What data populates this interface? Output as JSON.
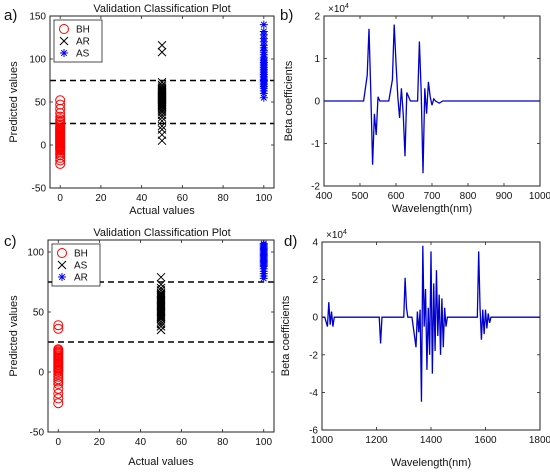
{
  "chart_data": [
    {
      "panel_label": "a)",
      "type": "scatter",
      "title": "Validation Classification Plot",
      "xlabel": "Actual values",
      "ylabel": "Predicted values",
      "xlim": [
        -5,
        105
      ],
      "ylim": [
        -50,
        150
      ],
      "xticks": [
        0,
        20,
        40,
        60,
        80,
        100
      ],
      "xtick_labels": [
        "0",
        "20",
        "40",
        "60",
        "80",
        "100"
      ],
      "yticks": [
        -50,
        0,
        50,
        100,
        150
      ],
      "ytick_labels": [
        "-50",
        "0",
        "50",
        "100",
        "150"
      ],
      "thresholds": [
        25,
        75
      ],
      "legend_position": "top-left",
      "legend": [
        {
          "label": "BH",
          "marker": "circle",
          "color": "#ff0000"
        },
        {
          "label": "AR",
          "marker": "x",
          "color": "#000000"
        },
        {
          "label": "AS",
          "marker": "asterisk",
          "color": "#0000ff"
        }
      ],
      "series": [
        {
          "name": "BH",
          "marker": "circle",
          "color": "#ff0000",
          "x": 0,
          "y": [
            -22,
            -18,
            -15,
            -12,
            -10,
            -8,
            -6,
            -5,
            -4,
            -3,
            -2,
            -1,
            0,
            1,
            2,
            3,
            4,
            5,
            6,
            7,
            8,
            9,
            10,
            11,
            12,
            13,
            14,
            15,
            16,
            17,
            18,
            19,
            20,
            22,
            24,
            26,
            28,
            30,
            33,
            37,
            42,
            47,
            52
          ]
        },
        {
          "name": "AR",
          "marker": "x",
          "color": "#000000",
          "x": 50,
          "y": [
            5,
            12,
            18,
            22,
            28,
            32,
            35,
            38,
            40,
            42,
            44,
            45,
            46,
            47,
            48,
            49,
            50,
            51,
            52,
            53,
            54,
            55,
            56,
            57,
            58,
            59,
            60,
            61,
            62,
            63,
            64,
            65,
            66,
            68,
            70,
            73,
            108,
            116
          ]
        },
        {
          "name": "AS",
          "marker": "asterisk",
          "color": "#0000ff",
          "x": 100,
          "y": [
            55,
            60,
            63,
            66,
            68,
            70,
            72,
            74,
            75,
            76,
            78,
            80,
            82,
            84,
            86,
            88,
            90,
            92,
            94,
            96,
            98,
            100,
            102,
            105,
            108,
            110,
            113,
            116,
            120,
            124,
            128,
            132,
            140
          ]
        }
      ]
    },
    {
      "panel_label": "b)",
      "type": "line",
      "title": "",
      "xlabel": "Wavelength(nm)",
      "ylabel": "Beta coefficients",
      "exponent_label": "×10^4",
      "xlim": [
        400,
        1000
      ],
      "ylim": [
        -2,
        2
      ],
      "xticks": [
        400,
        500,
        600,
        700,
        800,
        900,
        1000
      ],
      "xtick_labels": [
        "400",
        "500",
        "600",
        "700",
        "800",
        "900",
        "1000"
      ],
      "yticks": [
        -2,
        -1,
        0,
        1,
        2
      ],
      "ytick_labels": [
        "-2",
        "-1",
        "0",
        "1",
        "2"
      ],
      "series": [
        {
          "color": "#0000cc",
          "x": [
            400,
            510,
            520,
            525,
            530,
            535,
            540,
            545,
            550,
            555,
            560,
            580,
            590,
            595,
            600,
            605,
            610,
            615,
            620,
            625,
            630,
            640,
            650,
            660,
            665,
            670,
            675,
            680,
            685,
            690,
            695,
            700,
            705,
            710,
            720,
            730,
            1000
          ],
          "y": [
            0,
            0,
            0.6,
            1.7,
            0.2,
            -1.5,
            -0.3,
            -0.8,
            0.1,
            0,
            0,
            0,
            0.5,
            1.8,
            0.9,
            0.1,
            -0.4,
            0.3,
            -0.3,
            -1.3,
            0.2,
            0,
            0,
            0,
            1.4,
            0.2,
            -1.7,
            0.3,
            -0.3,
            0.45,
            0.1,
            -0.1,
            0.05,
            0,
            -0.05,
            0,
            0
          ]
        }
      ]
    },
    {
      "panel_label": "c)",
      "type": "scatter",
      "title": "Validation Classification Plot",
      "xlabel": "Actual values",
      "ylabel": "Predicted values",
      "xlim": [
        -5,
        105
      ],
      "ylim": [
        -50,
        110
      ],
      "xticks": [
        0,
        20,
        40,
        60,
        80,
        100
      ],
      "xtick_labels": [
        "0",
        "20",
        "40",
        "60",
        "80",
        "100"
      ],
      "yticks": [
        -50,
        0,
        50,
        100
      ],
      "ytick_labels": [
        "-50",
        "0",
        "50",
        "100"
      ],
      "thresholds": [
        25,
        75
      ],
      "legend_position": "top-left",
      "legend": [
        {
          "label": "BH",
          "marker": "circle",
          "color": "#ff0000"
        },
        {
          "label": "AS",
          "marker": "x",
          "color": "#000000"
        },
        {
          "label": "AR",
          "marker": "asterisk",
          "color": "#0000ff"
        }
      ],
      "series": [
        {
          "name": "BH",
          "marker": "circle",
          "color": "#ff0000",
          "x": 0,
          "y": [
            -26,
            -22,
            -18,
            -14,
            -10,
            -8,
            -6,
            -4,
            -2,
            0,
            1,
            2,
            3,
            4,
            5,
            6,
            7,
            8,
            9,
            10,
            11,
            12,
            13,
            14,
            15,
            16,
            17,
            18,
            19,
            36,
            39
          ]
        },
        {
          "name": "AS",
          "marker": "x",
          "color": "#000000",
          "x": 50,
          "y": [
            35,
            38,
            40,
            42,
            44,
            45,
            46,
            47,
            48,
            49,
            50,
            51,
            52,
            53,
            54,
            55,
            56,
            57,
            58,
            59,
            60,
            61,
            62,
            63,
            64,
            65,
            66,
            68,
            70,
            73,
            79
          ]
        },
        {
          "name": "AR",
          "marker": "asterisk",
          "color": "#0000ff",
          "x": 100,
          "y": [
            78,
            80,
            82,
            84,
            86,
            88,
            89,
            90,
            91,
            92,
            93,
            94,
            95,
            96,
            97,
            98,
            99,
            100,
            101,
            102,
            103,
            104,
            105,
            106,
            107
          ]
        }
      ]
    },
    {
      "panel_label": "d)",
      "type": "line",
      "title": "",
      "xlabel": "Wavelength(nm)",
      "ylabel": "Beta coefficients",
      "exponent_label": "×10^4",
      "xlim": [
        1000,
        1800
      ],
      "ylim": [
        -6,
        4
      ],
      "xticks": [
        1000,
        1200,
        1400,
        1600,
        1800
      ],
      "xtick_labels": [
        "1000",
        "1200",
        "1400",
        "1600",
        "1800"
      ],
      "yticks": [
        -6,
        -4,
        -2,
        0,
        2,
        4
      ],
      "ytick_labels": [
        "-6",
        "-4",
        "-2",
        "0",
        "2",
        "4"
      ],
      "series": [
        {
          "color": "#0000cc",
          "x": [
            1000,
            1010,
            1020,
            1025,
            1030,
            1035,
            1040,
            1045,
            1200,
            1210,
            1215,
            1220,
            1300,
            1305,
            1310,
            1315,
            1330,
            1345,
            1350,
            1355,
            1360,
            1365,
            1370,
            1375,
            1380,
            1385,
            1390,
            1395,
            1400,
            1405,
            1410,
            1415,
            1420,
            1425,
            1430,
            1435,
            1440,
            1445,
            1450,
            1455,
            1460,
            1570,
            1575,
            1580,
            1585,
            1590,
            1595,
            1600,
            1605,
            1610,
            1615,
            1620,
            1800
          ],
          "y": [
            0,
            0,
            -0.5,
            0.8,
            -0.4,
            0.3,
            -0.5,
            0,
            0,
            0,
            -1.4,
            0,
            0,
            2.1,
            0.5,
            0,
            0,
            -1.6,
            0.3,
            -0.8,
            0.4,
            -4.5,
            3.8,
            -0.5,
            1.5,
            -2.8,
            0.5,
            -2.0,
            3.5,
            -3.0,
            1.8,
            -1.8,
            2.5,
            -1.0,
            1.2,
            -2.0,
            1.0,
            -1.6,
            0.5,
            -0.5,
            0,
            0,
            3.5,
            0.5,
            -1.2,
            0.4,
            -0.9,
            0.4,
            -0.6,
            0.2,
            -0.3,
            0,
            0
          ]
        }
      ]
    }
  ]
}
